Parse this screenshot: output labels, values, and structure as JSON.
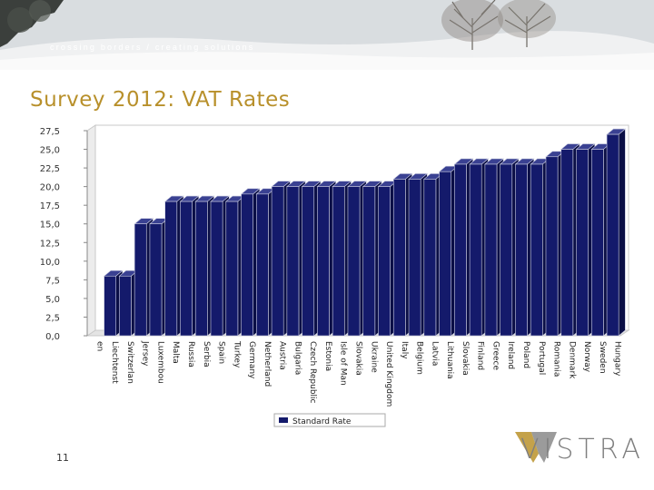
{
  "header": {
    "tagline": "crossing borders / creating solutions"
  },
  "slide": {
    "title": "Survey 2012: VAT Rates",
    "number": "11"
  },
  "logo": {
    "text": "VISTRA",
    "colors": {
      "gold": "#c4a24a",
      "grey": "#8a8a8a"
    }
  },
  "colors": {
    "title": "#b8902b",
    "bar_front": "#141a6b",
    "bar_top": "#3a4192",
    "bar_side": "#0a0e45"
  },
  "chart_data": {
    "type": "bar",
    "title": "",
    "xlabel": "",
    "ylabel": "",
    "ylim": [
      0,
      27.5
    ],
    "yticks": [
      "0,0",
      "2,5",
      "5,0",
      "7,5",
      "10,0",
      "12,5",
      "15,0",
      "17,5",
      "20,0",
      "22,5",
      "25,0",
      "27,5"
    ],
    "categories": [
      "en",
      "Liechtenst",
      "Switzerlan",
      "Jersey",
      "Luxembou",
      "Malta",
      "Russia",
      "Serbia",
      "Spain",
      "Turkey",
      "Germany",
      "Netherland",
      "Austria",
      "Bulgaria",
      "Czech Republic",
      "Estonia",
      "Isle of Man",
      "Slovakia",
      "Ukraine",
      "United Kingdom",
      "Italy",
      "Belgium",
      "Latvia",
      "Lithuania",
      "Slovakia",
      "Finland",
      "Greece",
      "Ireland",
      "Poland",
      "Portugal",
      "Romania",
      "Denmark",
      "Norway",
      "Sweden",
      "Hungary"
    ],
    "series": [
      {
        "name": "Standard Rate",
        "values": [
          0,
          8,
          8,
          15,
          15,
          18,
          18,
          18,
          18,
          18,
          19,
          19,
          20,
          20,
          20,
          20,
          20,
          20,
          20,
          20,
          21,
          21,
          21,
          22,
          23,
          23,
          23,
          23,
          23,
          23,
          24,
          25,
          25,
          25,
          27
        ]
      }
    ],
    "legend_position": "bottom",
    "grid": false
  }
}
